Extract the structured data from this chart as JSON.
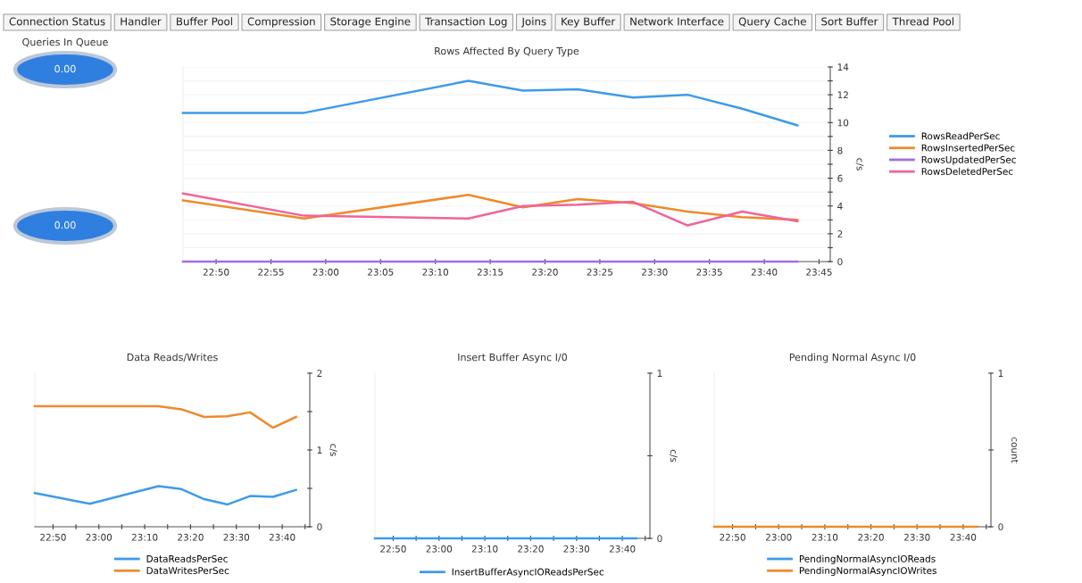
{
  "chart_data": [
    {
      "type": "other",
      "annotations": [
        "Connection Status",
        "Handler",
        "Buffer Pool",
        "Compression",
        "Storage Engine",
        "Transaction Log",
        "Joins",
        "Key Buffer",
        "Network Interface",
        "Query Cache",
        "Sort Buffer",
        "Thread Pool"
      ]
    },
    {
      "type": "other",
      "title": "Queries In Queue",
      "annotations": [
        "0.00"
      ]
    },
    {
      "type": "other",
      "annotations": [
        "0.00"
      ]
    },
    {
      "type": "line",
      "title": "Rows Affected By Query Type",
      "ylabel": "c/s",
      "x": [
        22.783,
        22.967,
        23.217,
        23.3,
        23.383,
        23.467,
        23.55,
        23.633,
        23.717
      ],
      "series": [
        {
          "name": "RowsReadPerSec",
          "color": "#3d9be9",
          "values": [
            10.7,
            10.7,
            13.0,
            12.3,
            12.4,
            11.8,
            12.0,
            11.0,
            9.8
          ]
        },
        {
          "name": "RowsInsertedPerSec",
          "color": "#ee8a2a",
          "values": [
            4.4,
            3.1,
            4.8,
            3.9,
            4.5,
            4.2,
            3.6,
            3.2,
            3.0
          ]
        },
        {
          "name": "RowsUpdatedPerSec",
          "color": "#9f6fdc",
          "values": [
            0,
            0,
            0,
            0,
            0,
            0,
            0,
            0,
            0
          ]
        },
        {
          "name": "RowsDeletedPerSec",
          "color": "#f0649a",
          "values": [
            4.9,
            3.3,
            3.1,
            4.0,
            4.1,
            4.3,
            2.6,
            3.6,
            2.9
          ]
        }
      ],
      "xlim": [
        22.783,
        23.767
      ],
      "xticks": [
        {
          "value": 22.8333,
          "label": "22:50"
        },
        {
          "value": 22.9167,
          "label": "22:55"
        },
        {
          "value": 23.0,
          "label": "23:00"
        },
        {
          "value": 23.0833,
          "label": "23:05"
        },
        {
          "value": 23.1667,
          "label": "23:10"
        },
        {
          "value": 23.25,
          "label": "23:15"
        },
        {
          "value": 23.3333,
          "label": "23:20"
        },
        {
          "value": 23.4167,
          "label": "23:25"
        },
        {
          "value": 23.5,
          "label": "23:30"
        },
        {
          "value": 23.5833,
          "label": "23:35"
        },
        {
          "value": 23.6667,
          "label": "23:40"
        },
        {
          "value": 23.75,
          "label": "23:45"
        }
      ],
      "ylim": [
        0,
        14
      ],
      "yticks": [
        0,
        {
          "value": 1,
          "label": null
        },
        2,
        {
          "value": 3,
          "label": null
        },
        4,
        {
          "value": 5,
          "label": null
        },
        6,
        {
          "value": 7,
          "label": null
        },
        8,
        {
          "value": 9,
          "label": null
        },
        10,
        {
          "value": 11,
          "label": null
        },
        12,
        {
          "value": 13,
          "label": null
        },
        14
      ],
      "grid": "y",
      "legend": "right"
    },
    {
      "type": "line",
      "title": "Data Reads/Writes",
      "ylabel": "c/s",
      "x": [
        22.767,
        22.967,
        23.217,
        23.3,
        23.383,
        23.467,
        23.55,
        23.633,
        23.717
      ],
      "series": [
        {
          "name": "DataReadsPerSec",
          "color": "#3d9be9",
          "values": [
            0.44,
            0.3,
            0.53,
            0.49,
            0.36,
            0.29,
            0.4,
            0.39,
            0.48
          ]
        },
        {
          "name": "DataWritesPerSec",
          "color": "#ee8a2a",
          "values": [
            1.57,
            1.57,
            1.57,
            1.53,
            1.43,
            1.44,
            1.49,
            1.29,
            1.43
          ]
        }
      ],
      "xlim": [
        22.767,
        23.767
      ],
      "xticks": [
        {
          "value": 22.8333,
          "label": "22:50"
        },
        {
          "value": 22.9167,
          "label": null
        },
        {
          "value": 23.0,
          "label": "23:00"
        },
        {
          "value": 23.0833,
          "label": null
        },
        {
          "value": 23.1667,
          "label": "23:10"
        },
        {
          "value": 23.25,
          "label": null
        },
        {
          "value": 23.3333,
          "label": "23:20"
        },
        {
          "value": 23.4167,
          "label": null
        },
        {
          "value": 23.5,
          "label": "23:30"
        },
        {
          "value": 23.5833,
          "label": null
        },
        {
          "value": 23.6667,
          "label": "23:40"
        },
        {
          "value": 23.75,
          "label": null
        }
      ],
      "ylim": [
        0,
        2
      ],
      "yticks": [
        0,
        {
          "value": 0.5,
          "label": null
        },
        1,
        {
          "value": 1.5,
          "label": null
        },
        2
      ],
      "legend": "bottom"
    },
    {
      "type": "line",
      "title": "Insert Buffer Async I/0",
      "ylabel": "c/s",
      "x": [
        22.767,
        22.967,
        23.217,
        23.3,
        23.383,
        23.467,
        23.55,
        23.633,
        23.717
      ],
      "series": [
        {
          "name": "InsertBufferAsyncIOReadsPerSec",
          "color": "#3d9be9",
          "values": [
            0,
            0,
            0,
            0,
            0,
            0,
            0,
            0,
            0
          ]
        }
      ],
      "xlim": [
        22.767,
        23.767
      ],
      "xticks": [
        {
          "value": 22.8333,
          "label": "22:50"
        },
        {
          "value": 22.9167,
          "label": null
        },
        {
          "value": 23.0,
          "label": "23:00"
        },
        {
          "value": 23.0833,
          "label": null
        },
        {
          "value": 23.1667,
          "label": "23:10"
        },
        {
          "value": 23.25,
          "label": null
        },
        {
          "value": 23.3333,
          "label": "23:20"
        },
        {
          "value": 23.4167,
          "label": null
        },
        {
          "value": 23.5,
          "label": "23:30"
        },
        {
          "value": 23.5833,
          "label": null
        },
        {
          "value": 23.6667,
          "label": "23:40"
        },
        {
          "value": 23.75,
          "label": null
        }
      ],
      "ylim": [
        0,
        1
      ],
      "yticks": [
        0,
        {
          "value": 0.5,
          "label": null
        },
        1
      ],
      "legend": "bottom"
    },
    {
      "type": "line",
      "title": "Pending Normal Async I/0",
      "ylabel": "count",
      "x": [
        22.767,
        22.967,
        23.217,
        23.3,
        23.383,
        23.467,
        23.55,
        23.633,
        23.717
      ],
      "series": [
        {
          "name": "PendingNormalAsyncIOReads",
          "color": "#3d9be9",
          "values": [
            null,
            null,
            null,
            null,
            null,
            null,
            null,
            null,
            null
          ]
        },
        {
          "name": "PendingNormalAsyncIOWrites",
          "color": "#ee8a2a",
          "values": [
            0,
            0,
            0,
            0,
            0,
            0,
            0,
            0,
            0
          ]
        }
      ],
      "xlim": [
        22.767,
        23.767
      ],
      "xticks": [
        {
          "value": 22.8333,
          "label": "22:50"
        },
        {
          "value": 22.9167,
          "label": null
        },
        {
          "value": 23.0,
          "label": "23:00"
        },
        {
          "value": 23.0833,
          "label": null
        },
        {
          "value": 23.1667,
          "label": "23:10"
        },
        {
          "value": 23.25,
          "label": null
        },
        {
          "value": 23.3333,
          "label": "23:20"
        },
        {
          "value": 23.4167,
          "label": null
        },
        {
          "value": 23.5,
          "label": "23:30"
        },
        {
          "value": 23.5833,
          "label": null
        },
        {
          "value": 23.6667,
          "label": "23:40"
        },
        {
          "value": 23.75,
          "label": null
        }
      ],
      "ylim": [
        0,
        1
      ],
      "yticks": [
        0,
        {
          "value": 0.5,
          "label": null
        },
        1
      ],
      "legend": "bottom"
    }
  ]
}
